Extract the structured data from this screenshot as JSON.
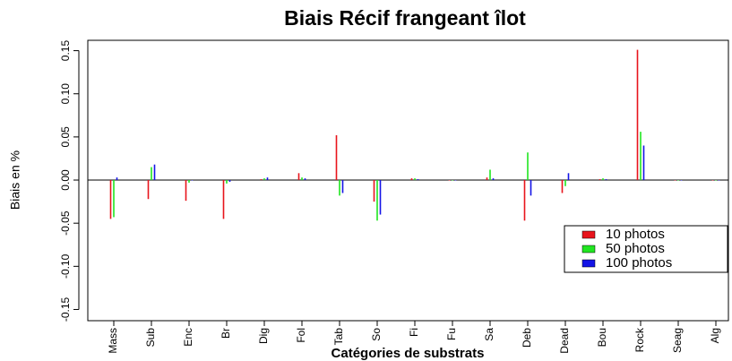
{
  "chart_data": {
    "type": "bar",
    "title": "Biais Récif frangeant îlot",
    "x_label": "Catégories de substrats",
    "y_label": "Biais en %",
    "categories": [
      "Mass",
      "Sub",
      "Enc",
      "Br",
      "Dig",
      "Fol",
      "Tab",
      "So",
      "Fi",
      "Fu",
      "Sa",
      "Deb",
      "Dead",
      "Bou",
      "Rock",
      "Seag",
      "Alg"
    ],
    "series": [
      {
        "name": "10 photos",
        "color": "#e8141c",
        "values": [
          -0.045,
          -0.022,
          -0.024,
          -0.045,
          0.001,
          0.008,
          0.052,
          -0.025,
          0.002,
          0,
          0.003,
          -0.047,
          -0.015,
          0.001,
          0.151,
          0,
          0
        ]
      },
      {
        "name": "50 photos",
        "color": "#21e621",
        "values": [
          -0.043,
          0.015,
          -0.003,
          -0.004,
          0.002,
          0.003,
          -0.018,
          -0.047,
          0.002,
          0,
          0.012,
          0.032,
          -0.007,
          0.002,
          0.056,
          0,
          0
        ]
      },
      {
        "name": "100 photos",
        "color": "#1414e6",
        "values": [
          0.003,
          0.018,
          0,
          -0.002,
          0.003,
          0.002,
          -0.015,
          -0.04,
          0.001,
          0,
          0.002,
          -0.018,
          0.008,
          0.001,
          0.04,
          0,
          0
        ]
      }
    ],
    "ylim": [
      -0.163,
      0.162
    ],
    "yticks": [
      -0.15,
      {
        "value": -0.1,
        "label": "-0.10"
      },
      -0.05,
      {
        "value": 0,
        "label": "0.00"
      },
      0.05,
      {
        "value": 0.1,
        "label": "0.10"
      },
      0.15
    ],
    "legend": "right"
  }
}
